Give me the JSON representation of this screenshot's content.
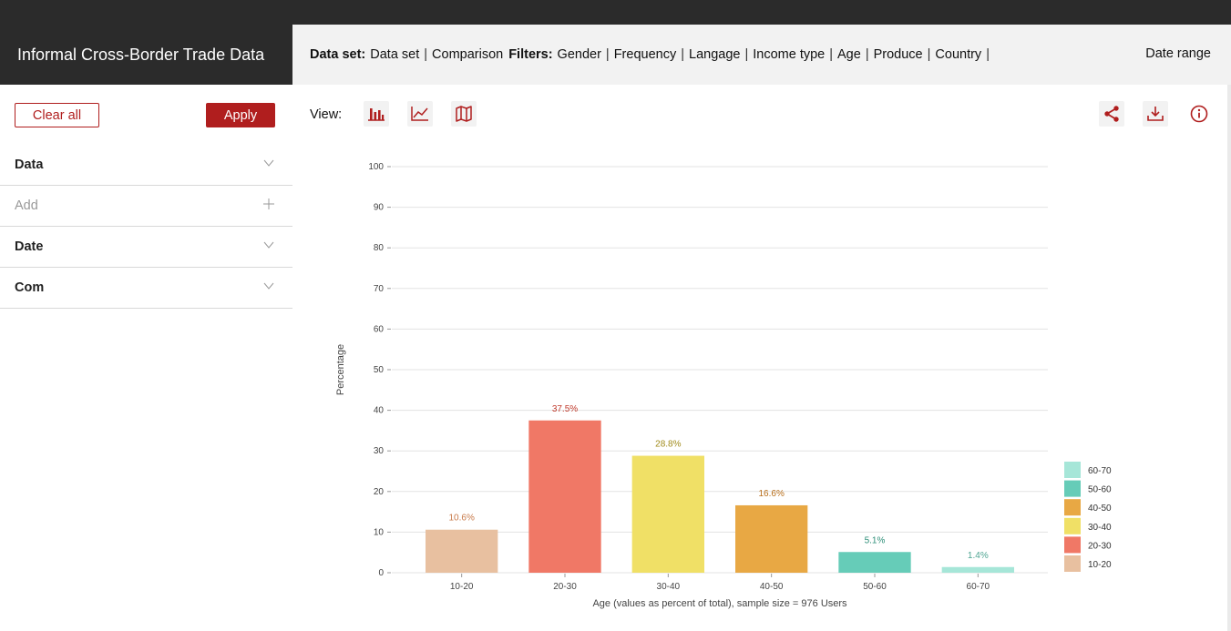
{
  "app": {
    "title": "Informal Cross-Border Trade Data"
  },
  "filterbar": {
    "dataset_label": "Data set:",
    "dataset_value": "Data set",
    "comparison": "Comparison",
    "filters_label": "Filters:",
    "filters": [
      "Gender",
      "Frequency",
      "Langage",
      "Income type",
      "Age",
      "Produce",
      "Country"
    ],
    "separator": "|",
    "date_range": "Date range"
  },
  "sidebar": {
    "clear_all": "Clear all",
    "apply": "Apply",
    "rows": [
      {
        "label": "Data",
        "control": "chevron-down"
      },
      {
        "label": "Add",
        "control": "plus"
      },
      {
        "label": "Date",
        "control": "chevron-down"
      },
      {
        "label": "Com",
        "control": "chevron-down"
      }
    ]
  },
  "toolbar": {
    "view_label": "View:",
    "views": [
      "bar-chart-icon",
      "line-chart-icon",
      "map-icon"
    ],
    "actions": [
      "share-icon",
      "download-icon",
      "info-icon"
    ],
    "accent": "#b01e1e"
  },
  "chart_data": {
    "type": "bar",
    "categories": [
      "10-20",
      "20-30",
      "30-40",
      "40-50",
      "50-60",
      "60-70"
    ],
    "values": [
      10.6,
      37.5,
      28.8,
      16.6,
      5.1,
      1.4
    ],
    "value_labels": [
      "10.6%",
      "37.5%",
      "28.8%",
      "16.6%",
      "5.1%",
      "1.4%"
    ],
    "colors": [
      "#e8c0a0",
      "#f07866",
      "#f0e066",
      "#e8a844",
      "#66ccb8",
      "#a6e6d8"
    ],
    "label_colors": [
      "#c87a4a",
      "#c0392b",
      "#a08a1a",
      "#b86e1a",
      "#2f8f7a",
      "#4fa592"
    ],
    "ylabel": "Percentage",
    "xlabel": "Age (values as percent of total), sample size = 976 Users",
    "ylim": [
      0,
      100
    ],
    "yticks": [
      0,
      10,
      20,
      30,
      40,
      50,
      60,
      70,
      80,
      90,
      100
    ],
    "grid": true,
    "legend": {
      "placement": "bottom-right",
      "items": [
        "60-70",
        "50-60",
        "40-50",
        "30-40",
        "20-30",
        "10-20"
      ]
    }
  }
}
